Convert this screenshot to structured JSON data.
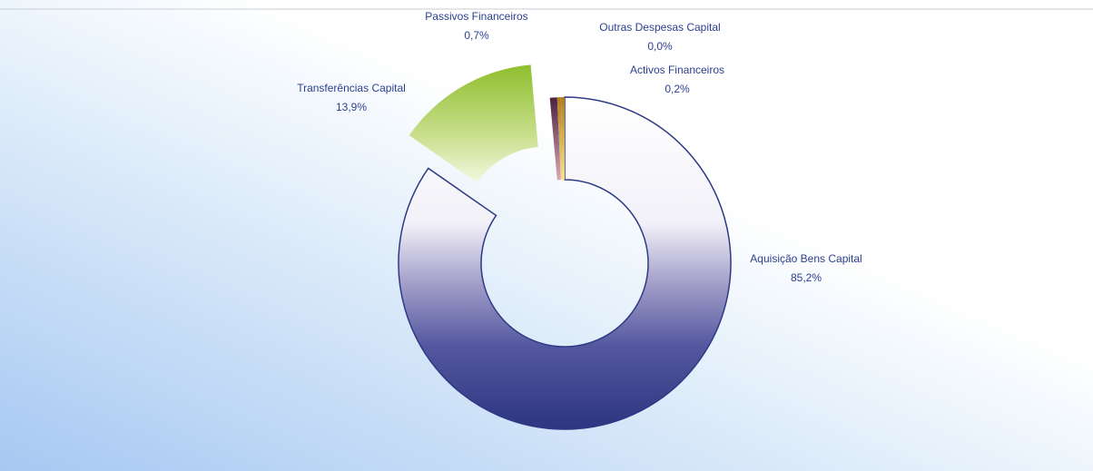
{
  "chart_data": {
    "type": "pie",
    "variant": "donut",
    "exploded": true,
    "slices": [
      {
        "label": "Aquisição Bens Capital",
        "value_text": "85,2%",
        "value": 85.2,
        "color": "#2e3a85"
      },
      {
        "label": "Transferências Capital",
        "value_text": "13,9%",
        "value": 13.9,
        "color": "#a5c94a"
      },
      {
        "label": "Passivos Financeiros",
        "value_text": "0,7%",
        "value": 0.7,
        "color": "#6e2a4d"
      },
      {
        "label": "Outras Despesas Capital",
        "value_text": "0,0%",
        "value": 0.0,
        "color": "#b0892d"
      },
      {
        "label": "Activos Financeiros",
        "value_text": "0,2%",
        "value": 0.2,
        "color": "#e6c144"
      }
    ],
    "legend": "none",
    "labels": "outside"
  }
}
